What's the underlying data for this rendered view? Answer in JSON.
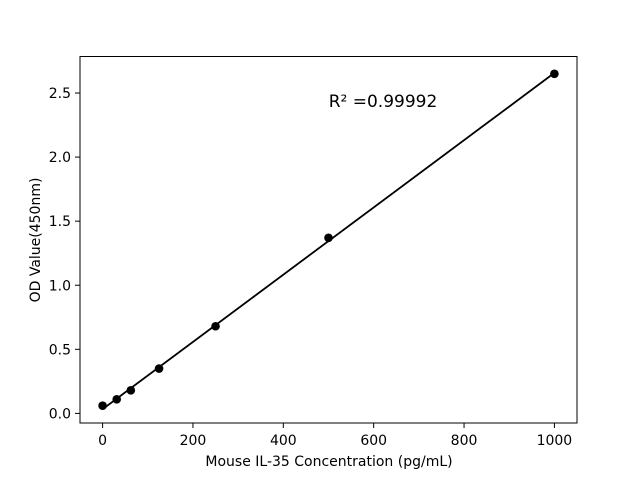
{
  "figure": {
    "background": "#ffffff"
  },
  "chart_data": {
    "type": "scatter",
    "title": "",
    "xlabel": "Mouse IL-35 Concentration (pg/mL)",
    "ylabel": "OD Value(450nm)",
    "annotation_text": "R² =0.99992",
    "annotation_data_xy": [
      620,
      2.45
    ],
    "x": [
      0,
      31.25,
      62.5,
      125,
      250,
      500,
      1000
    ],
    "y": [
      0.06,
      0.11,
      0.18,
      0.35,
      0.68,
      1.37,
      2.65
    ],
    "fit_line": {
      "x": [
        0,
        1000
      ],
      "y": [
        0.033,
        2.657
      ],
      "r_squared": "0.99992"
    },
    "xlim": [
      -50,
      1050
    ],
    "ylim": [
      -0.075,
      2.785
    ],
    "xticks": [
      0,
      200,
      400,
      600,
      800,
      1000
    ],
    "xtick_labels": [
      "0",
      "200",
      "400",
      "600",
      "800",
      "1000"
    ],
    "yticks": [
      0.0,
      0.5,
      1.0,
      1.5,
      2.0,
      2.5
    ],
    "ytick_labels": [
      "0.0",
      "0.5",
      "1.0",
      "1.5",
      "2.0",
      "2.5"
    ],
    "marker_color": "#000000",
    "line_color": "#000000",
    "axis_color": "#000000",
    "grid": false
  }
}
